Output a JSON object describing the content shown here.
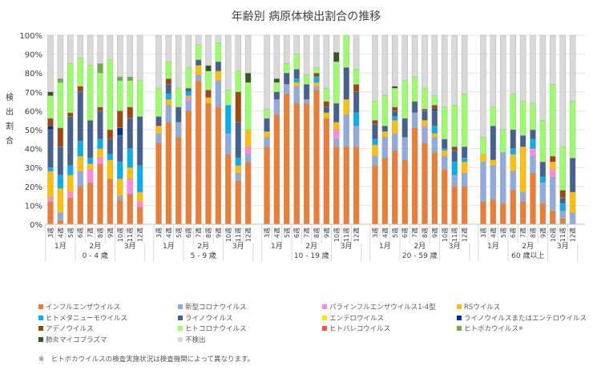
{
  "chart_data": {
    "type": "bar",
    "stacked": true,
    "title": "年齢別 病原体検出割合の推移",
    "ylabel": "検出割合",
    "ylim": [
      0,
      100
    ],
    "yticks": [
      "0%",
      "10%",
      "20%",
      "30%",
      "40%",
      "50%",
      "60%",
      "70%",
      "80%",
      "90%",
      "100%"
    ],
    "grid": true,
    "legend_position": "bottom",
    "weeks": [
      "3週",
      "4週",
      "5週",
      "6週",
      "7週",
      "8週",
      "9週",
      "10週",
      "11週",
      "12週"
    ],
    "months": [
      {
        "label": "1月",
        "weeks": 3
      },
      {
        "label": "2月",
        "weeks": 4
      },
      {
        "label": "3月",
        "weeks": 3
      }
    ],
    "series": [
      {
        "name": "インフルエンザウイルス",
        "color": "#ED7D31"
      },
      {
        "name": "新型コロナウイルス",
        "color": "#8FAADC"
      },
      {
        "name": "パラインフルエンザウイルス1-4型",
        "color": "#FF88DD"
      },
      {
        "name": "RSウイルス",
        "color": "#FFC000"
      },
      {
        "name": "ヒトメタニューモウイルス",
        "color": "#00B0F0"
      },
      {
        "name": "ライノウイルス",
        "color": "#44618F"
      },
      {
        "name": "エンテロウイルス",
        "color": "#FFE600"
      },
      {
        "name": "ライノウイルスまたはエンテロウイルス",
        "color": "#002F8E"
      },
      {
        "name": "アデノウイルス",
        "color": "#9E480E"
      },
      {
        "name": "ヒトコロナウイルス",
        "color": "#99FF66"
      },
      {
        "name": "ヒトパレコウイルス",
        "color": "#FF5050"
      },
      {
        "name": "ヒトボカウイルス",
        "color": "#70AD47",
        "mark": "※"
      },
      {
        "name": "肺炎マイコプラズマ",
        "color": "#375623"
      },
      {
        "name": "不検出",
        "color": "#D9D9D9"
      }
    ],
    "groups": [
      {
        "name": "0 - 4 歳",
        "bars": [
          [
            12,
            0,
            2,
            14,
            2,
            20,
            0,
            2,
            4,
            12,
            0,
            0,
            2,
            30
          ],
          [
            2,
            4,
            0,
            13,
            7,
            15,
            0,
            0,
            10,
            24,
            0,
            2,
            0,
            23
          ],
          [
            14,
            0,
            3,
            9,
            5,
            26,
            0,
            0,
            2,
            26,
            0,
            0,
            0,
            15
          ],
          [
            20,
            8,
            0,
            8,
            8,
            26,
            0,
            0,
            3,
            15,
            0,
            0,
            0,
            12
          ],
          [
            22,
            0,
            7,
            3,
            3,
            20,
            0,
            0,
            0,
            29,
            0,
            0,
            0,
            16
          ],
          [
            32,
            0,
            3,
            5,
            5,
            15,
            0,
            0,
            2,
            18,
            0,
            5,
            0,
            15
          ],
          [
            24,
            0,
            0,
            10,
            3,
            8,
            0,
            0,
            5,
            37,
            0,
            0,
            0,
            13
          ],
          [
            13,
            2,
            0,
            9,
            9,
            14,
            0,
            4,
            9,
            16,
            0,
            2,
            0,
            22
          ],
          [
            16,
            0,
            8,
            6,
            10,
            16,
            0,
            0,
            6,
            14,
            0,
            2,
            0,
            22
          ],
          [
            9,
            0,
            3,
            5,
            14,
            26,
            0,
            0,
            0,
            19,
            0,
            0,
            0,
            24
          ]
        ]
      },
      {
        "name": "5 - 9 歳",
        "bars": [
          [
            43,
            5,
            0,
            4,
            0,
            5,
            0,
            0,
            0,
            15,
            0,
            0,
            0,
            28
          ],
          [
            54,
            9,
            0,
            3,
            3,
            5,
            0,
            0,
            3,
            9,
            0,
            0,
            0,
            14
          ],
          [
            46,
            8,
            0,
            0,
            0,
            8,
            0,
            0,
            0,
            10,
            0,
            0,
            0,
            28
          ],
          [
            60,
            5,
            2,
            1,
            2,
            2,
            0,
            0,
            0,
            11,
            0,
            0,
            0,
            17
          ],
          [
            76,
            3,
            0,
            5,
            0,
            3,
            0,
            0,
            0,
            8,
            0,
            0,
            0,
            5
          ],
          [
            64,
            0,
            0,
            3,
            0,
            0,
            0,
            0,
            4,
            10,
            0,
            0,
            3,
            16
          ],
          [
            62,
            14,
            0,
            5,
            0,
            5,
            0,
            0,
            0,
            10,
            0,
            0,
            0,
            4
          ],
          [
            37,
            11,
            0,
            0,
            15,
            0,
            0,
            0,
            0,
            8,
            0,
            0,
            0,
            29
          ],
          [
            23,
            4,
            0,
            4,
            4,
            19,
            0,
            0,
            16,
            11,
            0,
            0,
            0,
            19
          ],
          [
            33,
            4,
            4,
            9,
            0,
            0,
            0,
            0,
            0,
            25,
            0,
            0,
            5,
            20
          ]
        ]
      },
      {
        "name": "10 - 19 歳",
        "bars": [
          [
            41,
            5,
            0,
            3,
            0,
            7,
            0,
            0,
            0,
            5,
            0,
            0,
            0,
            39
          ],
          [
            58,
            8,
            0,
            0,
            0,
            4,
            0,
            0,
            0,
            5,
            0,
            0,
            2,
            23
          ],
          [
            69,
            5,
            0,
            0,
            0,
            6,
            0,
            0,
            0,
            5,
            0,
            0,
            0,
            15
          ],
          [
            64,
            9,
            0,
            2,
            2,
            5,
            0,
            0,
            0,
            8,
            0,
            0,
            0,
            10
          ],
          [
            64,
            2,
            0,
            0,
            0,
            8,
            0,
            0,
            0,
            5,
            0,
            0,
            0,
            21
          ],
          [
            71,
            2,
            0,
            2,
            3,
            0,
            0,
            0,
            2,
            3,
            0,
            0,
            0,
            17
          ],
          [
            56,
            0,
            0,
            3,
            0,
            3,
            0,
            0,
            3,
            7,
            0,
            0,
            0,
            28
          ],
          [
            41,
            4,
            5,
            4,
            0,
            10,
            0,
            0,
            0,
            22,
            0,
            0,
            5,
            9
          ],
          [
            41,
            17,
            0,
            8,
            0,
            17,
            0,
            0,
            0,
            17,
            0,
            0,
            0,
            0
          ],
          [
            41,
            11,
            0,
            0,
            7,
            11,
            0,
            0,
            4,
            8,
            0,
            0,
            0,
            18
          ]
        ]
      },
      {
        "name": "20 - 59 歳",
        "bars": [
          [
            31,
            5,
            0,
            6,
            3,
            8,
            0,
            0,
            2,
            10,
            0,
            0,
            0,
            35
          ],
          [
            35,
            11,
            0,
            3,
            0,
            3,
            0,
            0,
            0,
            16,
            0,
            0,
            0,
            32
          ],
          [
            39,
            9,
            0,
            7,
            2,
            3,
            0,
            0,
            2,
            10,
            0,
            0,
            1,
            27
          ],
          [
            34,
            12,
            0,
            0,
            0,
            10,
            0,
            0,
            0,
            20,
            0,
            0,
            0,
            24
          ],
          [
            51,
            8,
            0,
            0,
            0,
            6,
            0,
            0,
            0,
            13,
            0,
            0,
            0,
            22
          ],
          [
            43,
            8,
            1,
            3,
            0,
            5,
            0,
            0,
            1,
            11,
            0,
            0,
            0,
            28
          ],
          [
            38,
            8,
            0,
            2,
            4,
            8,
            0,
            1,
            2,
            5,
            0,
            0,
            0,
            32
          ],
          [
            29,
            7,
            0,
            3,
            1,
            5,
            0,
            0,
            0,
            17,
            0,
            0,
            0,
            38
          ],
          [
            20,
            6,
            0,
            0,
            7,
            6,
            0,
            0,
            2,
            22,
            0,
            0,
            0,
            37
          ],
          [
            20,
            7,
            0,
            6,
            2,
            6,
            0,
            0,
            0,
            28,
            0,
            0,
            0,
            31
          ]
        ]
      },
      {
        "name": "60 歳以上",
        "bars": [
          [
            12,
            21,
            0,
            4,
            0,
            0,
            0,
            0,
            0,
            9,
            0,
            0,
            0,
            54
          ],
          [
            13,
            18,
            0,
            3,
            0,
            18,
            0,
            0,
            0,
            10,
            0,
            0,
            0,
            38
          ],
          [
            11,
            27,
            0,
            0,
            0,
            0,
            0,
            0,
            0,
            12,
            0,
            0,
            0,
            50
          ],
          [
            18,
            10,
            0,
            9,
            3,
            10,
            0,
            0,
            0,
            19,
            0,
            0,
            0,
            31
          ],
          [
            12,
            5,
            0,
            24,
            0,
            6,
            0,
            0,
            0,
            18,
            0,
            0,
            0,
            35
          ],
          [
            27,
            9,
            4,
            0,
            5,
            5,
            0,
            0,
            0,
            14,
            0,
            0,
            0,
            36
          ],
          [
            11,
            11,
            0,
            0,
            3,
            8,
            0,
            0,
            0,
            22,
            0,
            0,
            0,
            45
          ],
          [
            7,
            18,
            4,
            4,
            0,
            0,
            0,
            0,
            3,
            38,
            0,
            0,
            0,
            26
          ],
          [
            3,
            4,
            0,
            0,
            4,
            3,
            0,
            0,
            4,
            23,
            0,
            0,
            0,
            59
          ],
          [
            0,
            6,
            0,
            11,
            0,
            18,
            0,
            0,
            0,
            30,
            0,
            0,
            0,
            35
          ]
        ]
      }
    ]
  },
  "footnote": "※　ヒトボカウイルスの検査実施状況は検査機関によって異なります。"
}
